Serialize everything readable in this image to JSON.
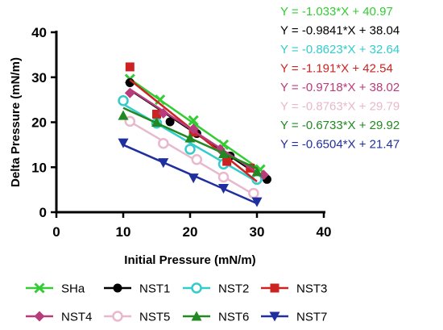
{
  "chart_data": {
    "type": "scatter",
    "xlabel": "Initial Pressure (mN/m)",
    "ylabel": "Delta Pressure (mN/m)",
    "xlim": [
      0,
      40
    ],
    "ylim": [
      0,
      40
    ],
    "x_ticks": [
      0,
      10,
      20,
      30,
      40
    ],
    "y_ticks": [
      0,
      10,
      20,
      30,
      40
    ],
    "grid": false,
    "legend_position": "bottom",
    "series": [
      {
        "name": "SHa",
        "color": "#33cc33",
        "marker": "x",
        "equation": "Y = -1.033*X + 40.97",
        "fit": {
          "slope": -1.033,
          "intercept": 40.97,
          "x_range": [
            11,
            30.5
          ]
        },
        "points": [
          {
            "x": 11,
            "y": 29.6
          },
          {
            "x": 15.5,
            "y": 25
          },
          {
            "x": 20.5,
            "y": 20.4
          },
          {
            "x": 25,
            "y": 15
          },
          {
            "x": 30.5,
            "y": 9.5
          }
        ]
      },
      {
        "name": "NST1",
        "color": "#000000",
        "marker": "circle",
        "equation": "Y = -0.9841*X + 38.04",
        "fit": {
          "slope": -0.9841,
          "intercept": 38.04,
          "x_range": [
            11,
            31.5
          ]
        },
        "points": [
          {
            "x": 11,
            "y": 28.8
          },
          {
            "x": 17,
            "y": 20.1
          },
          {
            "x": 21,
            "y": 17.5
          },
          {
            "x": 26,
            "y": 12.5
          },
          {
            "x": 31.5,
            "y": 7.3
          }
        ]
      },
      {
        "name": "NST2",
        "color": "#33cccc",
        "marker": "circle-open",
        "equation": "Y = -0.8623*X + 32.64",
        "fit": {
          "slope": -0.8623,
          "intercept": 32.64,
          "x_range": [
            10,
            30
          ]
        },
        "points": [
          {
            "x": 10,
            "y": 24.8
          },
          {
            "x": 15,
            "y": 19.8
          },
          {
            "x": 20,
            "y": 14
          },
          {
            "x": 25,
            "y": 10.7
          },
          {
            "x": 30,
            "y": 7.3
          }
        ]
      },
      {
        "name": "NST3",
        "color": "#cc2222",
        "marker": "square",
        "equation": "Y = -1.191*X + 42.54",
        "fit": {
          "slope": -1.191,
          "intercept": 42.54,
          "x_range": [
            11,
            30
          ]
        },
        "points": [
          {
            "x": 11,
            "y": 32.3
          },
          {
            "x": 15,
            "y": 21.8
          },
          {
            "x": 20.5,
            "y": 17.8
          },
          {
            "x": 25.5,
            "y": 11.3
          },
          {
            "x": 29,
            "y": 9.8
          }
        ]
      },
      {
        "name": "NST4",
        "color": "#b83b7a",
        "marker": "diamond",
        "equation": "Y = -0.9718*X + 38.02",
        "fit": {
          "slope": -0.9718,
          "intercept": 38.02,
          "x_range": [
            11,
            31
          ]
        },
        "points": [
          {
            "x": 11,
            "y": 26.5
          },
          {
            "x": 16,
            "y": 22
          },
          {
            "x": 20.5,
            "y": 18.5
          },
          {
            "x": 24.5,
            "y": 14
          },
          {
            "x": 31,
            "y": 8.3
          }
        ]
      },
      {
        "name": "NST5",
        "color": "#e8b8cc",
        "marker": "circle-open",
        "equation": "Y = -0.8763*X + 29.79",
        "fit": {
          "slope": -0.8763,
          "intercept": 29.79,
          "x_range": [
            11,
            30
          ]
        },
        "points": [
          {
            "x": 11,
            "y": 20.2
          },
          {
            "x": 16,
            "y": 15.3
          },
          {
            "x": 21,
            "y": 11.7
          },
          {
            "x": 25,
            "y": 7.8
          },
          {
            "x": 29.5,
            "y": 4.2
          }
        ]
      },
      {
        "name": "NST6",
        "color": "#228822",
        "marker": "triangle-up",
        "equation": "Y = -0.6733*X + 29.92",
        "fit": {
          "slope": -0.6733,
          "intercept": 29.92,
          "x_range": [
            10,
            30
          ]
        },
        "points": [
          {
            "x": 10,
            "y": 21.5
          },
          {
            "x": 15,
            "y": 20
          },
          {
            "x": 20,
            "y": 16.5
          },
          {
            "x": 25,
            "y": 13
          },
          {
            "x": 30,
            "y": 9
          }
        ]
      },
      {
        "name": "NST7",
        "color": "#1f2f9f",
        "marker": "triangle-down",
        "equation": "Y = -0.6504*X + 21.47",
        "fit": {
          "slope": -0.6504,
          "intercept": 21.47,
          "x_range": [
            10,
            30
          ]
        },
        "points": [
          {
            "x": 10,
            "y": 15.4
          },
          {
            "x": 16,
            "y": 11
          },
          {
            "x": 20.5,
            "y": 7.6
          },
          {
            "x": 25,
            "y": 5.3
          },
          {
            "x": 30,
            "y": 2.3
          }
        ]
      }
    ]
  }
}
